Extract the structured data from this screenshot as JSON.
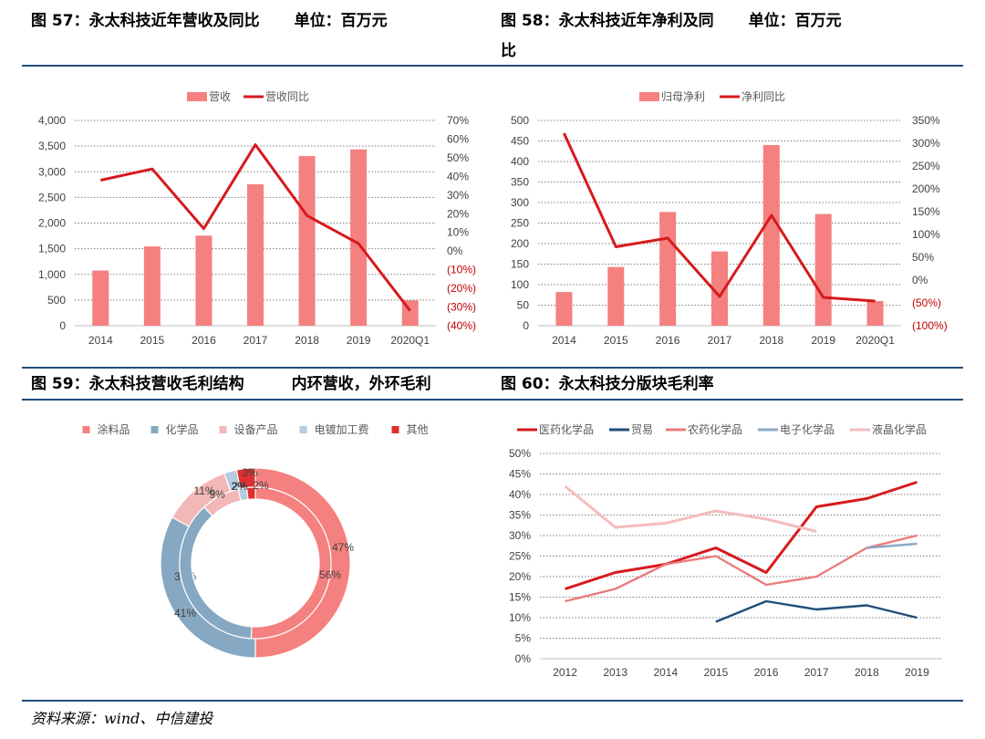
{
  "titles": {
    "c57": {
      "name": "图 57：永太科技近年营收及同比",
      "unit": "单位：百万元"
    },
    "c58": {
      "name_line1": "图 58：永太科技近年净利及同",
      "name_line2": "比",
      "unit": "单位：百万元"
    },
    "c59": {
      "name": "图 59：永太科技营收毛利结构",
      "note": "内环营收，外环毛利"
    },
    "c60": {
      "name": "图 60：永太科技分版块毛利率"
    }
  },
  "source": "资料来源：wind、中信建投",
  "colors": {
    "bar": "#f4807f",
    "line": "#d7191c",
    "rule": "#1f4e79",
    "negative": "#c00000"
  },
  "chart_data": [
    {
      "id": "fig57",
      "type": "bar+line",
      "categories": [
        "2014",
        "2015",
        "2016",
        "2017",
        "2018",
        "2019",
        "2020Q1"
      ],
      "series": [
        {
          "name": "营收",
          "type": "bar",
          "axis": "left",
          "values": [
            1075,
            1545,
            1755,
            2755,
            3305,
            3435,
            495
          ]
        },
        {
          "name": "营收同比",
          "type": "line",
          "axis": "right",
          "values": [
            0.38,
            0.44,
            0.12,
            0.57,
            0.19,
            0.04,
            -0.32
          ]
        }
      ],
      "y_left": {
        "min": 0,
        "max": 4000,
        "step": 500,
        "tick_labels": [
          "0",
          "500",
          "1,000",
          "1,500",
          "2,000",
          "2,500",
          "3,000",
          "3,500",
          "4,000"
        ]
      },
      "y_right": {
        "min": -0.4,
        "max": 0.7,
        "step": 0.1,
        "tick_labels": [
          "(40%)",
          "(30%)",
          "(20%)",
          "(10%)",
          "0%",
          "10%",
          "20%",
          "30%",
          "40%",
          "50%",
          "60%",
          "70%"
        ]
      },
      "legend": "top-center",
      "grid": "horizontal-dotted"
    },
    {
      "id": "fig58",
      "type": "bar+line",
      "categories": [
        "2014",
        "2015",
        "2016",
        "2017",
        "2018",
        "2019",
        "2020Q1"
      ],
      "series": [
        {
          "name": "归母净利",
          "type": "bar",
          "axis": "left",
          "values": [
            82,
            143,
            277,
            181,
            440,
            272,
            60
          ]
        },
        {
          "name": "净利同比",
          "type": "line",
          "axis": "right",
          "values": [
            3.22,
            0.73,
            0.92,
            -0.36,
            1.42,
            -0.38,
            -0.46
          ]
        }
      ],
      "y_left": {
        "min": 0,
        "max": 500,
        "step": 50,
        "tick_labels": [
          "0",
          "50",
          "100",
          "150",
          "200",
          "250",
          "300",
          "350",
          "400",
          "450",
          "500"
        ]
      },
      "y_right": {
        "min": -1.0,
        "max": 3.5,
        "step": 0.5,
        "tick_labels": [
          "(100%)",
          "(50%)",
          "0%",
          "50%",
          "100%",
          "150%",
          "200%",
          "250%",
          "300%",
          "350%"
        ]
      },
      "legend": "top-center",
      "grid": "horizontal-dotted"
    },
    {
      "id": "fig59",
      "type": "pie",
      "subtype": "double-ring",
      "legend": "top-center",
      "categories": [
        "涂料品",
        "化学品",
        "设备产品",
        "电镀加工费",
        "其他"
      ],
      "colors": [
        "#f4807f",
        "#86a8c3",
        "#f4b7b7",
        "#b4cbe0",
        "#e02f2f"
      ],
      "series": [
        {
          "name": "外环毛利",
          "values": [
            47,
            31,
            11,
            2,
            3
          ],
          "labels": [
            "47%",
            "31%",
            "11%",
            "2%",
            "3%"
          ]
        },
        {
          "name": "内环营收",
          "values": [
            56,
            41,
            9,
            2,
            2
          ],
          "labels": [
            "56%",
            "41%",
            "9%",
            "2%",
            "2%"
          ]
        }
      ]
    },
    {
      "id": "fig60",
      "type": "line",
      "x": [
        "2012",
        "2013",
        "2014",
        "2015",
        "2016",
        "2017",
        "2018",
        "2019"
      ],
      "series": [
        {
          "name": "医药化学品",
          "color": "#d7191c",
          "width": 3,
          "values": [
            17,
            21,
            23,
            27,
            21,
            37,
            39,
            43
          ]
        },
        {
          "name": "贸易",
          "color": "#1f4e79",
          "width": 2.4,
          "values": [
            null,
            null,
            null,
            9,
            14,
            12,
            13,
            10
          ]
        },
        {
          "name": "农药化学品",
          "color": "#ec7b7b",
          "width": 2.4,
          "values": [
            14,
            17,
            23,
            25,
            18,
            20,
            27,
            30
          ]
        },
        {
          "name": "电子化学品",
          "color": "#8aaac4",
          "width": 2.4,
          "values": [
            null,
            null,
            null,
            null,
            null,
            null,
            27,
            28
          ]
        },
        {
          "name": "液晶化学品",
          "color": "#f6bcbc",
          "width": 3,
          "values": [
            42,
            32,
            33,
            36,
            34,
            31,
            null,
            null
          ]
        }
      ],
      "y": {
        "min": 0,
        "max": 50,
        "step": 5,
        "tick_labels": [
          "0%",
          "5%",
          "10%",
          "15%",
          "20%",
          "25%",
          "30%",
          "35%",
          "40%",
          "45%",
          "50%"
        ]
      },
      "legend": "top-center",
      "grid": "horizontal-dotted"
    }
  ]
}
